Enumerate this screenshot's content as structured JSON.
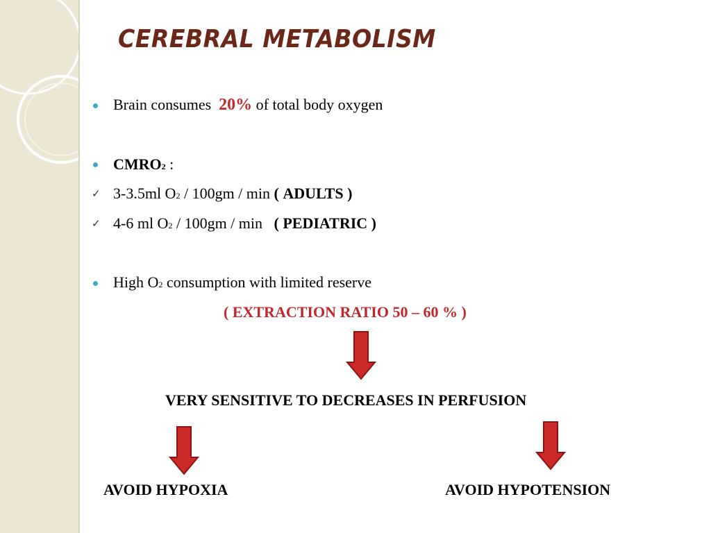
{
  "title": "CEREBRAL METABOLISM",
  "bullets": {
    "b1": {
      "pre": "Brain consumes",
      "highlight": "20%",
      "post": "of total body oxygen"
    },
    "b2": {
      "label": "CMRO",
      "sub": "2",
      "post": ":"
    },
    "c1": {
      "pre": "3-3.5ml O",
      "sub": "2",
      "mid": "/ 100gm / min",
      "paren_open": "(",
      "tag": "ADULTS",
      "paren_close": ")"
    },
    "c2": {
      "pre": "4-6 ml O",
      "sub": "2",
      "mid": "/ 100gm / min",
      "paren_open": "(",
      "tag": "PEDIATRIC",
      "paren_close": ")"
    },
    "b3": {
      "pre": "High O",
      "sub": "2",
      "post": "consumption with limited reserve"
    }
  },
  "extraction": "( EXTRACTION RATIO  50 – 60 % )",
  "sensitive": "VERY SENSITIVE TO DECREASES IN PERFUSION",
  "avoid_left": "AVOID HYPOXIA",
  "avoid_right": "AVOID HYPOTENSION",
  "colors": {
    "title": "#6b2718",
    "accent_red": "#c0282c",
    "bullet": "#41a8c8",
    "arrow": "#cc2a2a",
    "sidebar": "#ece6d4"
  },
  "icons": {
    "bullet": "bullet-dot-icon",
    "check": "checkmark-icon",
    "arrow": "arrow-down-icon"
  }
}
